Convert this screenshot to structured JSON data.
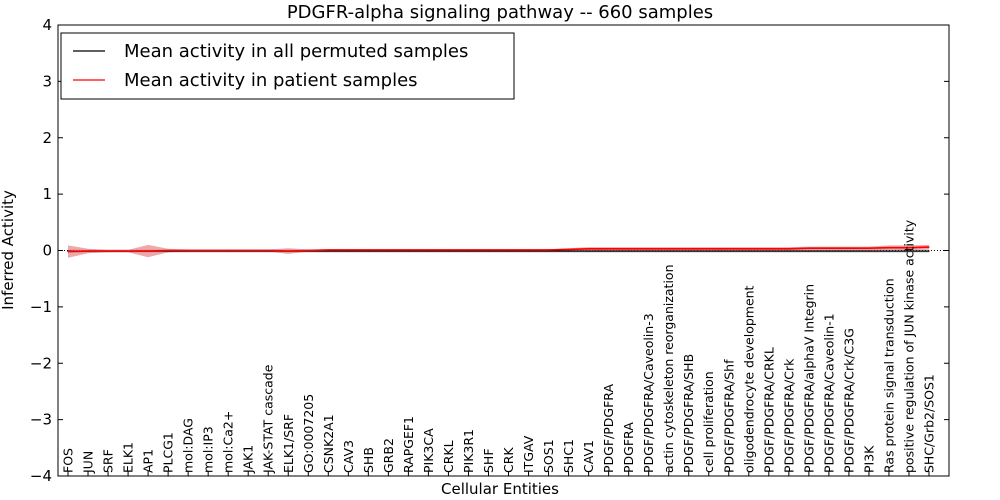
{
  "chart_data": {
    "type": "line",
    "title": "PDGFR-alpha signaling pathway -- 660 samples",
    "xlabel": "Cellular Entities",
    "ylabel": "Inferred Activity",
    "ylim": [
      -4,
      4
    ],
    "yticks": [
      -4,
      -3,
      -2,
      -1,
      0,
      1,
      2,
      3,
      4
    ],
    "ytick_labels": [
      "−4",
      "−3",
      "−2",
      "−1",
      "0",
      "1",
      "2",
      "3",
      "4"
    ],
    "legend_placement": "top-left",
    "categories": [
      "FOS",
      "JUN",
      "SRF",
      "ELK1",
      "AP1",
      "PLCG1",
      "mol:DAG",
      "mol:IP3",
      "mol:Ca2+",
      "JAK1",
      "JAK-STAT cascade",
      "ELK1/SRF",
      "GO:0007205",
      "CSNK2A1",
      "CAV3",
      "SHB",
      "GRB2",
      "RAPGEF1",
      "PIK3CA",
      "CRKL",
      "PIK3R1",
      "SHF",
      "CRK",
      "ITGAV",
      "SOS1",
      "SHC1",
      "CAV1",
      "PDGF/PDGFRA",
      "PDGFRA",
      "PDGF/PDGFRA/Caveolin-3",
      "actin cytoskeleton reorganization",
      "PDGF/PDGFRA/SHB",
      "cell proliferation",
      "PDGF/PDGFRA/Shf",
      "oligodendrocyte development",
      "PDGF/PDGFRA/CRKL",
      "PDGF/PDGFRA/Crk",
      "PDGF/PDGFRA/alphaV Integrin",
      "PDGF/PDGFRA/Caveolin-1",
      "PDGF/PDGFRA/Crk/C3G",
      "PI3K",
      "Ras protein signal transduction",
      "positive regulation of JUN kinase activity",
      "SHC/Grb2/SOS1"
    ],
    "series": [
      {
        "name": "Mean activity in all permuted samples",
        "color": "#000000",
        "values": [
          -0.01,
          -0.01,
          -0.01,
          -0.01,
          -0.01,
          -0.01,
          -0.01,
          -0.01,
          -0.01,
          -0.01,
          -0.01,
          -0.01,
          -0.01,
          -0.01,
          -0.01,
          -0.01,
          -0.01,
          -0.01,
          -0.01,
          -0.01,
          -0.01,
          -0.01,
          -0.01,
          -0.01,
          -0.01,
          -0.01,
          -0.01,
          -0.01,
          -0.01,
          -0.01,
          -0.01,
          -0.01,
          -0.01,
          -0.01,
          -0.01,
          -0.01,
          -0.01,
          -0.01,
          -0.01,
          -0.01,
          -0.01,
          -0.01,
          -0.01,
          -0.01
        ]
      },
      {
        "name": "Mean activity in patient samples",
        "color": "#ff0000",
        "values": [
          -0.02,
          -0.01,
          -0.01,
          -0.01,
          -0.01,
          0.0,
          0.0,
          0.0,
          0.0,
          0.0,
          0.0,
          -0.01,
          0.0,
          0.01,
          0.01,
          0.01,
          0.01,
          0.01,
          0.01,
          0.01,
          0.01,
          0.01,
          0.01,
          0.01,
          0.01,
          0.02,
          0.03,
          0.03,
          0.03,
          0.03,
          0.03,
          0.03,
          0.03,
          0.03,
          0.03,
          0.03,
          0.03,
          0.04,
          0.04,
          0.04,
          0.04,
          0.05,
          0.05,
          0.06
        ],
        "band_lower": [
          -0.13,
          -0.05,
          -0.03,
          -0.03,
          -0.12,
          -0.03,
          -0.02,
          -0.02,
          -0.02,
          -0.02,
          -0.02,
          -0.06,
          -0.02,
          0.0,
          0.0,
          0.0,
          0.0,
          0.0,
          0.0,
          0.0,
          0.0,
          0.0,
          0.0,
          0.0,
          0.0,
          0.0,
          0.0,
          0.0,
          0.0,
          0.0,
          0.0,
          0.0,
          0.0,
          0.0,
          0.0,
          0.0,
          0.0,
          0.0,
          0.0,
          0.0,
          0.0,
          0.01,
          0.01,
          0.02
        ],
        "band_upper": [
          0.09,
          0.03,
          0.01,
          0.01,
          0.1,
          0.03,
          0.02,
          0.02,
          0.02,
          0.02,
          0.02,
          0.04,
          0.02,
          0.02,
          0.02,
          0.02,
          0.02,
          0.02,
          0.02,
          0.02,
          0.02,
          0.02,
          0.02,
          0.02,
          0.02,
          0.04,
          0.06,
          0.06,
          0.06,
          0.06,
          0.06,
          0.06,
          0.06,
          0.06,
          0.06,
          0.06,
          0.06,
          0.07,
          0.07,
          0.07,
          0.07,
          0.09,
          0.09,
          0.1
        ]
      }
    ],
    "colors": {
      "band": "#e06060",
      "axis": "#000000",
      "zero_line": "#000000"
    }
  }
}
